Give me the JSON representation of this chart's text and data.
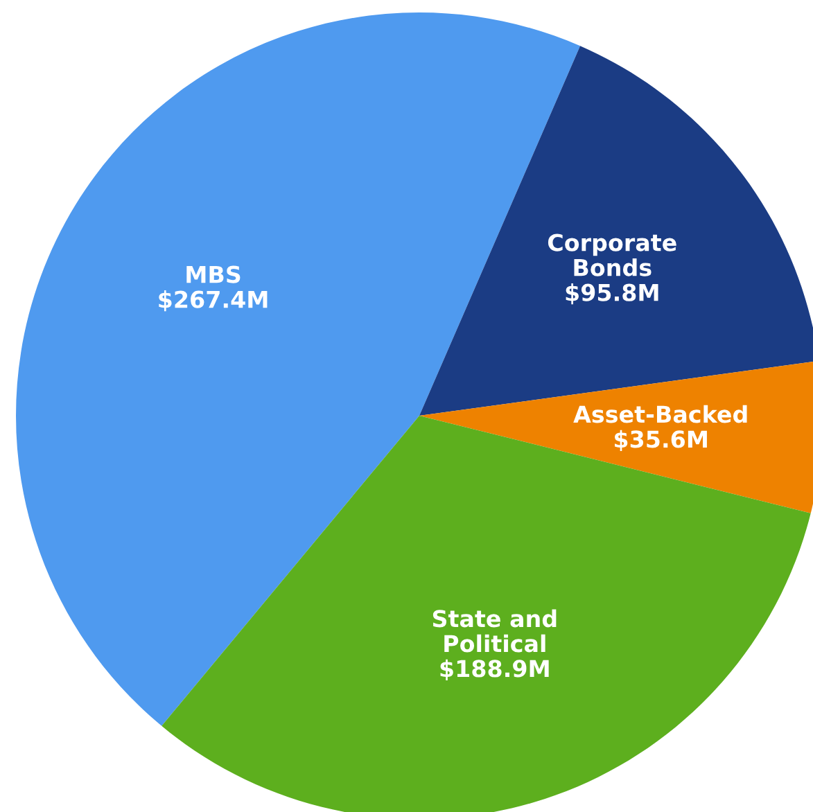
{
  "chart_data": {
    "type": "pie",
    "categories": [
      "MBS",
      "Corporate Bonds",
      "Asset-Backed",
      "State and Political"
    ],
    "values": [
      267.4,
      95.8,
      35.6,
      188.9
    ],
    "colors": [
      "#4f9aef",
      "#1b3c84",
      "#ee8200",
      "#5daf1e"
    ],
    "value_labels": [
      "$267.4M",
      "$95.8M",
      "$35.6M",
      "$188.9M"
    ]
  }
}
